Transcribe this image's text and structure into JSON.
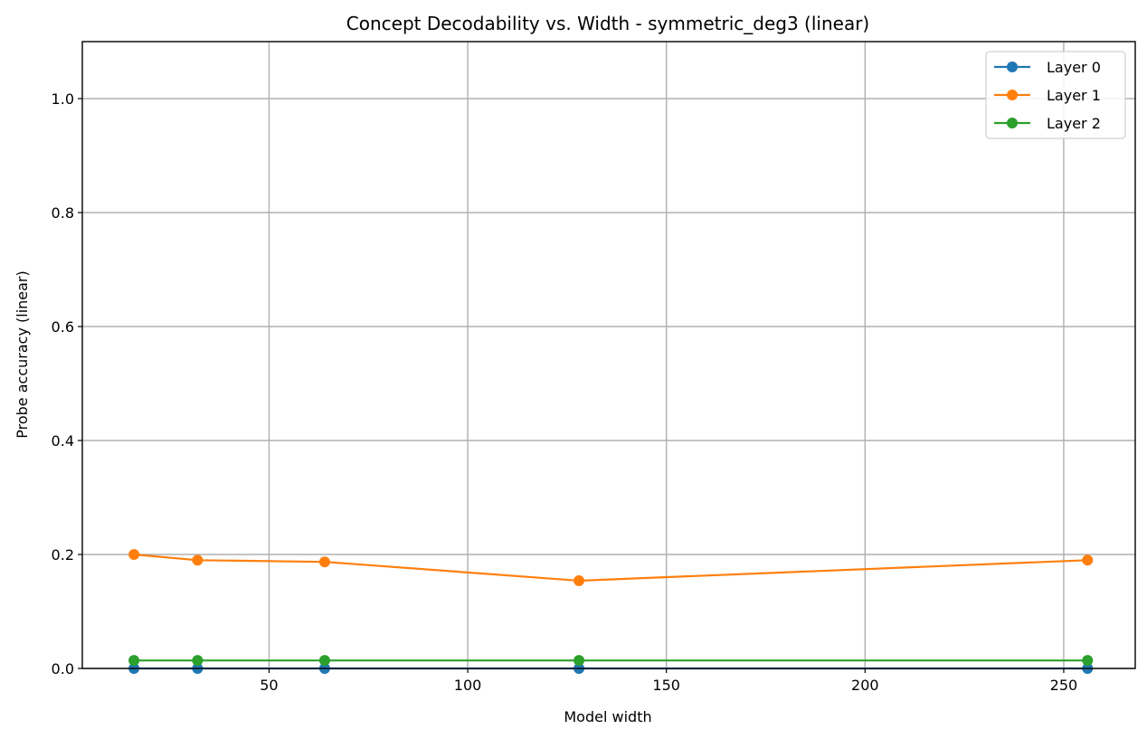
{
  "chart_data": {
    "type": "line",
    "title": "Concept Decodability vs. Width - symmetric_deg3 (linear)",
    "xlabel": "Model width",
    "ylabel": "Probe accuracy (linear)",
    "xlim": [
      3,
      268
    ],
    "ylim": [
      0,
      1.1
    ],
    "xticks": [
      50,
      100,
      150,
      200,
      250
    ],
    "yticks": [
      0.0,
      0.2,
      0.4,
      0.6,
      0.8,
      1.0
    ],
    "xtick_labels": [
      "50",
      "100",
      "150",
      "200",
      "250"
    ],
    "ytick_labels": [
      "0.0",
      "0.2",
      "0.4",
      "0.6",
      "0.8",
      "1.0"
    ],
    "grid": true,
    "legend_position": "top-right",
    "x": [
      16,
      32,
      64,
      128,
      256
    ],
    "series": [
      {
        "name": "Layer 0",
        "color": "#1f77b4",
        "values": [
          0.0,
          0.0,
          0.0,
          0.0,
          0.0
        ]
      },
      {
        "name": "Layer 1",
        "color": "#ff7f0e",
        "values": [
          0.2,
          0.19,
          0.187,
          0.154,
          0.19
        ]
      },
      {
        "name": "Layer 2",
        "color": "#2ca02c",
        "values": [
          0.014,
          0.014,
          0.014,
          0.014,
          0.014
        ]
      }
    ]
  }
}
